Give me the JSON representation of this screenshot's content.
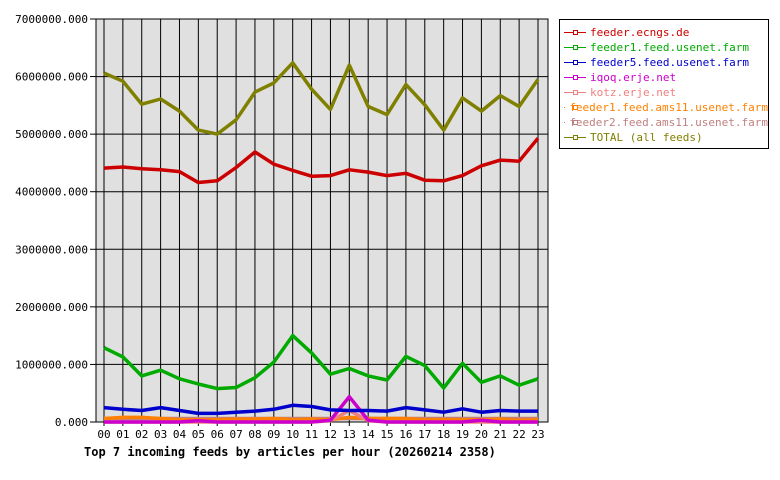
{
  "chart_data": {
    "type": "line",
    "title": "Top 7 incoming feeds by articles per hour (20260214 2358)",
    "xlabel": "",
    "ylabel": "",
    "ylim": [
      0,
      7000000
    ],
    "yticks": [
      "0.000",
      "1000000.000",
      "2000000.000",
      "3000000.000",
      "4000000.000",
      "5000000.000",
      "6000000.000",
      "7000000.000"
    ],
    "grid": true,
    "legend_position": "right",
    "categories": [
      "00",
      "01",
      "02",
      "03",
      "04",
      "05",
      "06",
      "07",
      "08",
      "09",
      "10",
      "11",
      "12",
      "13",
      "14",
      "15",
      "16",
      "17",
      "18",
      "19",
      "20",
      "21",
      "22",
      "23"
    ],
    "series": [
      {
        "name": "feeder.ecngs.de",
        "color": "#cc0000",
        "values": [
          4410000,
          4430000,
          4400000,
          4380000,
          4350000,
          4160000,
          4190000,
          4420000,
          4690000,
          4480000,
          4370000,
          4270000,
          4280000,
          4380000,
          4340000,
          4280000,
          4320000,
          4200000,
          4190000,
          4280000,
          4450000,
          4550000,
          4530000,
          4930000
        ]
      },
      {
        "name": "feeder1.feed.usenet.farm",
        "color": "#00aa00",
        "values": [
          1290000,
          1130000,
          800000,
          900000,
          750000,
          660000,
          580000,
          600000,
          770000,
          1040000,
          1500000,
          1200000,
          830000,
          930000,
          800000,
          730000,
          1140000,
          980000,
          590000,
          1020000,
          690000,
          800000,
          640000,
          750000
        ]
      },
      {
        "name": "feeder5.feed.usenet.farm",
        "color": "#0000cc",
        "values": [
          250000,
          220000,
          200000,
          250000,
          200000,
          150000,
          150000,
          170000,
          190000,
          220000,
          290000,
          270000,
          210000,
          200000,
          200000,
          190000,
          250000,
          210000,
          170000,
          230000,
          170000,
          200000,
          190000,
          190000
        ]
      },
      {
        "name": "iqoq.erje.net",
        "color": "#cc00cc",
        "values": [
          0,
          0,
          0,
          0,
          0,
          20000,
          0,
          0,
          0,
          0,
          0,
          0,
          30000,
          440000,
          30000,
          0,
          0,
          0,
          0,
          0,
          30000,
          0,
          0,
          0
        ]
      },
      {
        "name": "kotz.erje.net",
        "color": "#f08080",
        "values": [
          0,
          0,
          0,
          0,
          0,
          0,
          0,
          0,
          0,
          0,
          0,
          0,
          20000,
          200000,
          20000,
          0,
          0,
          0,
          0,
          0,
          0,
          0,
          0,
          0
        ]
      },
      {
        "name": "feeder1.feed.ams11.usenet.farm",
        "color": "#ff8000",
        "values": [
          60000,
          80000,
          80000,
          60000,
          40000,
          40000,
          40000,
          50000,
          50000,
          60000,
          40000,
          50000,
          40000,
          80000,
          60000,
          60000,
          60000,
          40000,
          40000,
          40000,
          40000,
          50000,
          30000,
          40000
        ]
      },
      {
        "name": "feeder2.feed.ams11.usenet.farm",
        "color": "#c08080",
        "values": [
          60000,
          60000,
          60000,
          60000,
          60000,
          60000,
          60000,
          60000,
          60000,
          60000,
          60000,
          60000,
          60000,
          60000,
          60000,
          60000,
          60000,
          60000,
          60000,
          60000,
          60000,
          60000,
          60000,
          60000
        ]
      },
      {
        "name": "TOTAL (all feeds)",
        "color": "#808000",
        "values": [
          6060000,
          5920000,
          5520000,
          5610000,
          5400000,
          5070000,
          5000000,
          5250000,
          5730000,
          5890000,
          6240000,
          5780000,
          5430000,
          6200000,
          5480000,
          5340000,
          5860000,
          5510000,
          5070000,
          5630000,
          5400000,
          5670000,
          5480000,
          5950000
        ]
      }
    ]
  },
  "colors": {
    "plot_bg": "#e0e0e0",
    "grid": "#000000"
  }
}
